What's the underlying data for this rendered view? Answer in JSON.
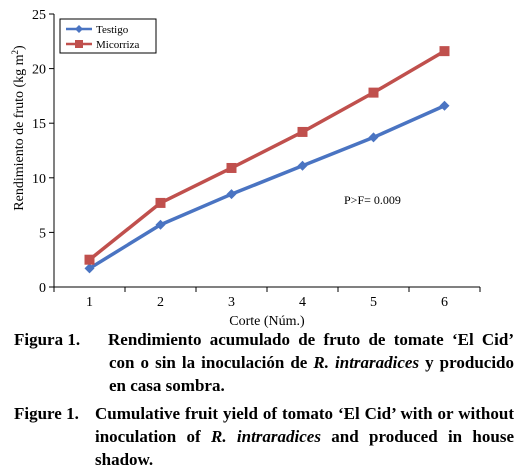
{
  "chart_data": {
    "type": "line",
    "x": [
      1,
      2,
      3,
      4,
      5,
      6
    ],
    "xlabel": "Corte (Núm.)",
    "ylabel": "Rendimiento de fruto (kg m²)",
    "ylabel_main": "Rendimiento de fruto (kg m",
    "ylabel_sup": "2",
    "ylabel_close": ")",
    "xlim": [
      0.5,
      6.5
    ],
    "ylim": [
      0,
      25
    ],
    "yticks": [
      0,
      5,
      10,
      15,
      20,
      25
    ],
    "xticks": [
      1,
      2,
      3,
      4,
      5,
      6
    ],
    "grid": false,
    "legend_position": "top-left",
    "annotation": "P>F= 0.009",
    "series": [
      {
        "name": "Testigo",
        "color": "#4a74c2",
        "marker": "diamond",
        "values": [
          1.7,
          5.7,
          8.5,
          11.1,
          13.7,
          16.6
        ]
      },
      {
        "name": "Micorriza",
        "color": "#c0504d",
        "marker": "square",
        "values": [
          2.5,
          7.7,
          10.9,
          14.2,
          17.8,
          21.6
        ]
      }
    ]
  },
  "caption": {
    "es_label": "Figura 1.",
    "es_pre": "Rendimiento acumulado de fruto de tomate ‘El Cid’ con o sin la inoculación de ",
    "es_species": "R. intraradices",
    "es_post": " y producido en casa sombra.",
    "en_label": "Figure 1.",
    "en_pre": "Cumulative fruit yield of tomato ‘El Cid’ with or without inoculation of ",
    "en_species": "R. intraradices",
    "en_post": " and produced in house shadow."
  }
}
